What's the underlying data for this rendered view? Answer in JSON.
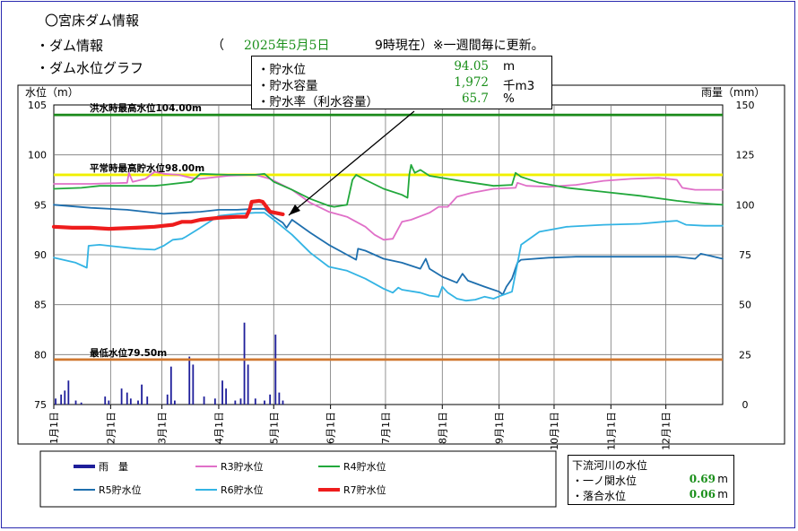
{
  "header": {
    "title": "〇宮床ダム情報",
    "dam_info_label": "・ダム情報",
    "paren_open": "（",
    "date": "2025年5月5日",
    "time": "9時現在）※一週間毎に更新。",
    "graph_label": "・ダム水位グラフ"
  },
  "info_box": {
    "rows": [
      {
        "label": "・貯水位",
        "value": "94.05",
        "unit": "m"
      },
      {
        "label": "・貯水容量",
        "value": "1,972",
        "unit": "千m3"
      },
      {
        "label": "・貯水率（利水容量）",
        "value": "65.7",
        "unit": "%"
      }
    ]
  },
  "downstream": {
    "title": "下流河川の水位",
    "rows": [
      {
        "label": "・一ノ関水位",
        "value": "0.69",
        "unit": "m"
      },
      {
        "label": "・落合水位",
        "value": "0.06",
        "unit": "m"
      }
    ]
  },
  "colors": {
    "rain": "#1e1e9a",
    "r3": "#e070c8",
    "r4": "#22a83c",
    "r5": "#1e6fae",
    "r6": "#33b4e4",
    "r7": "#ee1c1c",
    "flood_line": "#1a8a1a",
    "normal_line": "#f0f000",
    "min_line": "#d07830"
  },
  "chart_data": {
    "type": "line",
    "title": "ダム水位グラフ",
    "ylabel": "水位（m）",
    "y2label": "雨量（mm）",
    "ylim": [
      75,
      105
    ],
    "y2lim": [
      0,
      150
    ],
    "yticks": [
      75,
      80,
      85,
      90,
      95,
      100,
      105
    ],
    "y2ticks": [
      0,
      25,
      50,
      75,
      100,
      125,
      150
    ],
    "xlim": [
      0,
      365
    ],
    "month_ticks": [
      {
        "day": 0,
        "label": "1月1日"
      },
      {
        "day": 31,
        "label": "2月1日"
      },
      {
        "day": 59,
        "label": "3月1日"
      },
      {
        "day": 90,
        "label": "4月1日"
      },
      {
        "day": 120,
        "label": "5月1日"
      },
      {
        "day": 151,
        "label": "6月1日"
      },
      {
        "day": 181,
        "label": "7月1日"
      },
      {
        "day": 212,
        "label": "8月1日"
      },
      {
        "day": 243,
        "label": "9月1日"
      },
      {
        "day": 273,
        "label": "10月1日"
      },
      {
        "day": 304,
        "label": "11月1日"
      },
      {
        "day": 334,
        "label": "12月1日"
      }
    ],
    "reference_lines": [
      {
        "name": "洪水時最高水位104.00m",
        "value": 104.0,
        "color_key": "flood_line"
      },
      {
        "name": "平常時最高貯水位98.00m",
        "value": 98.0,
        "color_key": "normal_line"
      },
      {
        "name": "最低水位79.50m",
        "value": 79.5,
        "color_key": "min_line"
      }
    ],
    "series": [
      {
        "key": "r3",
        "name": "R3貯水位",
        "width": 1.8,
        "points": [
          [
            0,
            97.1
          ],
          [
            20,
            97.1
          ],
          [
            40,
            97.2
          ],
          [
            41,
            98.2
          ],
          [
            43,
            97.3
          ],
          [
            50,
            97.6
          ],
          [
            55,
            98.3
          ],
          [
            60,
            98.1
          ],
          [
            68,
            98.0
          ],
          [
            75,
            97.7
          ],
          [
            80,
            97.6
          ],
          [
            95,
            97.9
          ],
          [
            110,
            98.0
          ],
          [
            118,
            97.6
          ],
          [
            130,
            96.5
          ],
          [
            140,
            95.2
          ],
          [
            150,
            94.3
          ],
          [
            160,
            93.8
          ],
          [
            170,
            92.8
          ],
          [
            175,
            92.0
          ],
          [
            180,
            91.5
          ],
          [
            185,
            91.6
          ],
          [
            190,
            93.3
          ],
          [
            195,
            93.5
          ],
          [
            205,
            94.2
          ],
          [
            210,
            94.8
          ],
          [
            215,
            94.8
          ],
          [
            220,
            95.8
          ],
          [
            228,
            96.2
          ],
          [
            240,
            96.6
          ],
          [
            252,
            96.7
          ],
          [
            253,
            97.2
          ],
          [
            258,
            96.9
          ],
          [
            270,
            96.8
          ],
          [
            285,
            97.0
          ],
          [
            300,
            97.4
          ],
          [
            315,
            97.6
          ],
          [
            330,
            97.7
          ],
          [
            340,
            97.5
          ],
          [
            343,
            96.7
          ],
          [
            350,
            96.5
          ],
          [
            365,
            96.5
          ]
        ]
      },
      {
        "key": "r4",
        "name": "R4貯水位",
        "width": 1.8,
        "points": [
          [
            0,
            96.6
          ],
          [
            15,
            96.7
          ],
          [
            25,
            96.9
          ],
          [
            40,
            96.9
          ],
          [
            55,
            96.9
          ],
          [
            60,
            97.0
          ],
          [
            75,
            97.3
          ],
          [
            80,
            98.1
          ],
          [
            95,
            98.0
          ],
          [
            110,
            98.0
          ],
          [
            115,
            98.1
          ],
          [
            120,
            97.3
          ],
          [
            130,
            96.5
          ],
          [
            140,
            95.6
          ],
          [
            150,
            94.9
          ],
          [
            153,
            94.8
          ],
          [
            160,
            95.0
          ],
          [
            163,
            97.5
          ],
          [
            165,
            98.0
          ],
          [
            170,
            97.5
          ],
          [
            180,
            96.6
          ],
          [
            190,
            96.0
          ],
          [
            193,
            95.7
          ],
          [
            194,
            98.0
          ],
          [
            195,
            99.0
          ],
          [
            197,
            98.2
          ],
          [
            200,
            98.5
          ],
          [
            205,
            97.9
          ],
          [
            215,
            97.6
          ],
          [
            225,
            97.3
          ],
          [
            240,
            96.9
          ],
          [
            250,
            97.0
          ],
          [
            252,
            98.2
          ],
          [
            255,
            97.8
          ],
          [
            265,
            97.2
          ],
          [
            280,
            96.7
          ],
          [
            300,
            96.3
          ],
          [
            320,
            95.9
          ],
          [
            340,
            95.4
          ],
          [
            350,
            95.2
          ],
          [
            365,
            95.0
          ]
        ]
      },
      {
        "key": "r5",
        "name": "R5貯水位",
        "width": 1.8,
        "points": [
          [
            0,
            95.0
          ],
          [
            20,
            94.7
          ],
          [
            40,
            94.5
          ],
          [
            50,
            94.3
          ],
          [
            60,
            94.1
          ],
          [
            70,
            94.2
          ],
          [
            80,
            94.3
          ],
          [
            90,
            94.5
          ],
          [
            100,
            94.5
          ],
          [
            110,
            94.6
          ],
          [
            115,
            94.6
          ],
          [
            120,
            93.8
          ],
          [
            125,
            93.2
          ],
          [
            127,
            92.7
          ],
          [
            130,
            93.5
          ],
          [
            140,
            92.2
          ],
          [
            150,
            91.0
          ],
          [
            160,
            90.0
          ],
          [
            165,
            89.5
          ],
          [
            166,
            90.6
          ],
          [
            170,
            90.4
          ],
          [
            180,
            89.6
          ],
          [
            190,
            89.2
          ],
          [
            200,
            88.6
          ],
          [
            203,
            89.6
          ],
          [
            205,
            88.6
          ],
          [
            212,
            87.8
          ],
          [
            220,
            87.2
          ],
          [
            223,
            88.1
          ],
          [
            226,
            87.4
          ],
          [
            235,
            86.8
          ],
          [
            243,
            86.3
          ],
          [
            245,
            86.0
          ],
          [
            247,
            86.8
          ],
          [
            250,
            87.6
          ],
          [
            253,
            89.2
          ],
          [
            255,
            89.5
          ],
          [
            270,
            89.7
          ],
          [
            285,
            89.8
          ],
          [
            300,
            89.8
          ],
          [
            320,
            89.8
          ],
          [
            340,
            89.8
          ],
          [
            350,
            89.6
          ],
          [
            353,
            90.1
          ],
          [
            358,
            89.9
          ],
          [
            365,
            89.6
          ]
        ]
      },
      {
        "key": "r6",
        "name": "R6貯水位",
        "width": 1.8,
        "points": [
          [
            0,
            89.7
          ],
          [
            12,
            89.2
          ],
          [
            18,
            88.7
          ],
          [
            19,
            90.9
          ],
          [
            25,
            91.0
          ],
          [
            35,
            90.8
          ],
          [
            45,
            90.6
          ],
          [
            55,
            90.5
          ],
          [
            60,
            90.9
          ],
          [
            65,
            91.5
          ],
          [
            70,
            91.6
          ],
          [
            72,
            91.8
          ],
          [
            80,
            92.7
          ],
          [
            90,
            93.9
          ],
          [
            100,
            94.1
          ],
          [
            110,
            94.2
          ],
          [
            115,
            94.2
          ],
          [
            120,
            93.5
          ],
          [
            130,
            92.0
          ],
          [
            140,
            90.2
          ],
          [
            150,
            88.8
          ],
          [
            160,
            88.4
          ],
          [
            170,
            87.6
          ],
          [
            180,
            86.6
          ],
          [
            185,
            86.2
          ],
          [
            188,
            86.7
          ],
          [
            190,
            86.5
          ],
          [
            200,
            86.2
          ],
          [
            205,
            85.9
          ],
          [
            210,
            85.8
          ],
          [
            212,
            86.8
          ],
          [
            215,
            86.2
          ],
          [
            220,
            85.6
          ],
          [
            225,
            85.4
          ],
          [
            230,
            85.5
          ],
          [
            235,
            85.8
          ],
          [
            240,
            85.6
          ],
          [
            244,
            85.9
          ],
          [
            250,
            86.3
          ],
          [
            255,
            91.0
          ],
          [
            265,
            92.3
          ],
          [
            280,
            92.8
          ],
          [
            300,
            93.0
          ],
          [
            320,
            93.1
          ],
          [
            332,
            93.3
          ],
          [
            340,
            93.4
          ],
          [
            345,
            93.0
          ],
          [
            355,
            92.9
          ],
          [
            365,
            92.9
          ]
        ]
      },
      {
        "key": "r7",
        "name": "R7貯水位",
        "width": 4.2,
        "points": [
          [
            0,
            92.8
          ],
          [
            10,
            92.7
          ],
          [
            20,
            92.7
          ],
          [
            30,
            92.6
          ],
          [
            45,
            92.7
          ],
          [
            55,
            92.8
          ],
          [
            60,
            92.9
          ],
          [
            65,
            93.0
          ],
          [
            70,
            93.3
          ],
          [
            75,
            93.3
          ],
          [
            80,
            93.5
          ],
          [
            90,
            93.7
          ],
          [
            100,
            93.8
          ],
          [
            105,
            93.8
          ],
          [
            107,
            94.6
          ],
          [
            108,
            95.3
          ],
          [
            112,
            95.4
          ],
          [
            114,
            95.3
          ],
          [
            118,
            94.3
          ],
          [
            125,
            94.05
          ]
        ]
      }
    ],
    "rainfall": {
      "name": "雨量",
      "unit": "mm",
      "bars": [
        [
          1,
          3
        ],
        [
          4,
          5
        ],
        [
          6,
          7
        ],
        [
          8,
          12
        ],
        [
          12,
          2
        ],
        [
          15,
          1
        ],
        [
          28,
          4
        ],
        [
          30,
          2
        ],
        [
          37,
          8
        ],
        [
          40,
          6
        ],
        [
          42,
          3
        ],
        [
          46,
          2
        ],
        [
          48,
          10
        ],
        [
          51,
          4
        ],
        [
          62,
          5
        ],
        [
          64,
          19
        ],
        [
          66,
          2
        ],
        [
          74,
          24
        ],
        [
          76,
          20
        ],
        [
          82,
          4
        ],
        [
          88,
          3
        ],
        [
          92,
          12
        ],
        [
          94,
          8
        ],
        [
          99,
          2
        ],
        [
          102,
          3
        ],
        [
          104,
          41
        ],
        [
          106,
          20
        ],
        [
          110,
          3
        ],
        [
          115,
          2
        ],
        [
          118,
          5
        ],
        [
          121,
          35
        ],
        [
          123,
          6
        ],
        [
          125,
          2
        ]
      ]
    }
  },
  "legend": {
    "items": [
      {
        "label": "雨　量",
        "color_key": "rain",
        "weight": 4
      },
      {
        "label": "R3貯水位",
        "color_key": "r3",
        "weight": 2
      },
      {
        "label": "R4貯水位",
        "color_key": "r4",
        "weight": 2
      },
      {
        "label": "R5貯水位",
        "color_key": "r5",
        "weight": 2
      },
      {
        "label": "R6貯水位",
        "color_key": "r6",
        "weight": 2
      },
      {
        "label": "R7貯水位",
        "color_key": "r7",
        "weight": 4
      }
    ]
  }
}
